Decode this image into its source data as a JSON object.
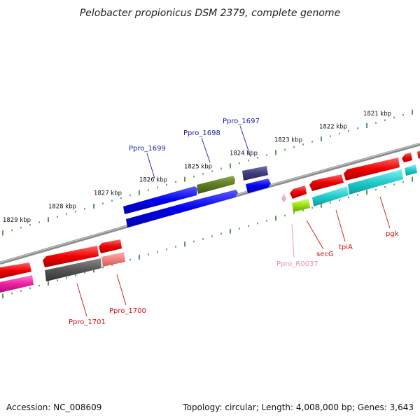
{
  "title": "Pelobacter propionicus DSM 2379, complete genome",
  "footer": {
    "accession": "Accession: NC_008609",
    "summary": "Topology: circular; Length: 4,008,000 bp; Genes: 3,643"
  },
  "ticks": [
    "1821 kbp",
    "1822 kbp",
    "1823 kbp",
    "1824 kbp",
    "1825 kbp",
    "1826 kbp",
    "1827 kbp",
    "1828 kbp",
    "1829 kbp"
  ],
  "gene_labels": {
    "ppro_1699": "Ppro_1699",
    "ppro_1698": "Ppro_1698",
    "ppro_1697": "Ppro_1697",
    "ppro_1701": "Ppro_1701",
    "ppro_1700": "Ppro_1700",
    "ppro_r0037": "Ppro_R0037",
    "secg": "secG",
    "tpia": "tpiA",
    "pgk": "pgk"
  },
  "colors": {
    "tick": "#2e7d2e",
    "backbone": "#888888",
    "forward_label": "#1a1aaa",
    "reverse_label": "#cc1111",
    "rna_label": "#e98fb3"
  }
}
